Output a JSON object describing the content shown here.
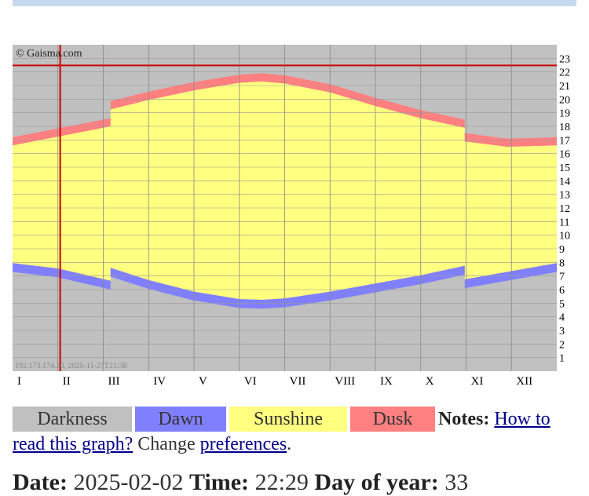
{
  "chart_data": {
    "type": "daylight",
    "credit": "© Gaisma.com",
    "footer": "192.173.174.20, 2025-11-27T21:38",
    "categories": [
      "I",
      "II",
      "III",
      "IV",
      "V",
      "VI",
      "VII",
      "VIII",
      "IX",
      "X",
      "XI",
      "XII"
    ],
    "xlim": [
      0,
      12
    ],
    "ylim": [
      0,
      24
    ],
    "yticks": [
      1,
      2,
      3,
      4,
      5,
      6,
      7,
      8,
      9,
      10,
      11,
      12,
      13,
      14,
      15,
      16,
      17,
      18,
      19,
      20,
      21,
      22,
      23
    ],
    "grid": true,
    "x": [
      0,
      1,
      2.16,
      2.16,
      3,
      4,
      5,
      5.5,
      6,
      7,
      8,
      9,
      9.97,
      9.97,
      10.9,
      12
    ],
    "dawn_start": [
      7.3,
      6.9,
      6.0,
      6.95,
      6.05,
      5.2,
      4.65,
      4.6,
      4.7,
      5.2,
      5.8,
      6.4,
      7.1,
      6.1,
      6.65,
      7.3
    ],
    "sunrise": [
      7.95,
      7.55,
      6.65,
      7.6,
      6.7,
      5.85,
      5.3,
      5.25,
      5.35,
      5.85,
      6.45,
      7.05,
      7.75,
      6.75,
      7.3,
      7.95
    ],
    "sunset": [
      16.6,
      17.25,
      18.0,
      19.25,
      19.95,
      20.65,
      21.2,
      21.3,
      21.15,
      20.5,
      19.5,
      18.6,
      17.9,
      16.9,
      16.5,
      16.6
    ],
    "dusk_end": [
      17.2,
      17.85,
      18.6,
      19.85,
      20.55,
      21.25,
      21.8,
      21.9,
      21.75,
      21.1,
      20.1,
      19.2,
      18.5,
      17.5,
      17.1,
      17.2
    ],
    "marker": {
      "x": 1.05,
      "y": 22.48,
      "color": "#cc0000"
    },
    "legend": [
      {
        "name": "Darkness",
        "color": "#c0c0c0"
      },
      {
        "name": "Dawn",
        "color": "#8080ff"
      },
      {
        "name": "Sunshine",
        "color": "#ffff80"
      },
      {
        "name": "Dusk",
        "color": "#ff8080"
      }
    ]
  },
  "notes": {
    "label": "Notes:",
    "link": "How to read this graph?",
    "change": "Change",
    "preferences": "preferences",
    "end": "."
  },
  "info": {
    "date_label": "Date:",
    "date": "2025-02-02",
    "time_label": "Time:",
    "time": "22:29",
    "doy_label": "Day of year:",
    "doy": "33"
  }
}
